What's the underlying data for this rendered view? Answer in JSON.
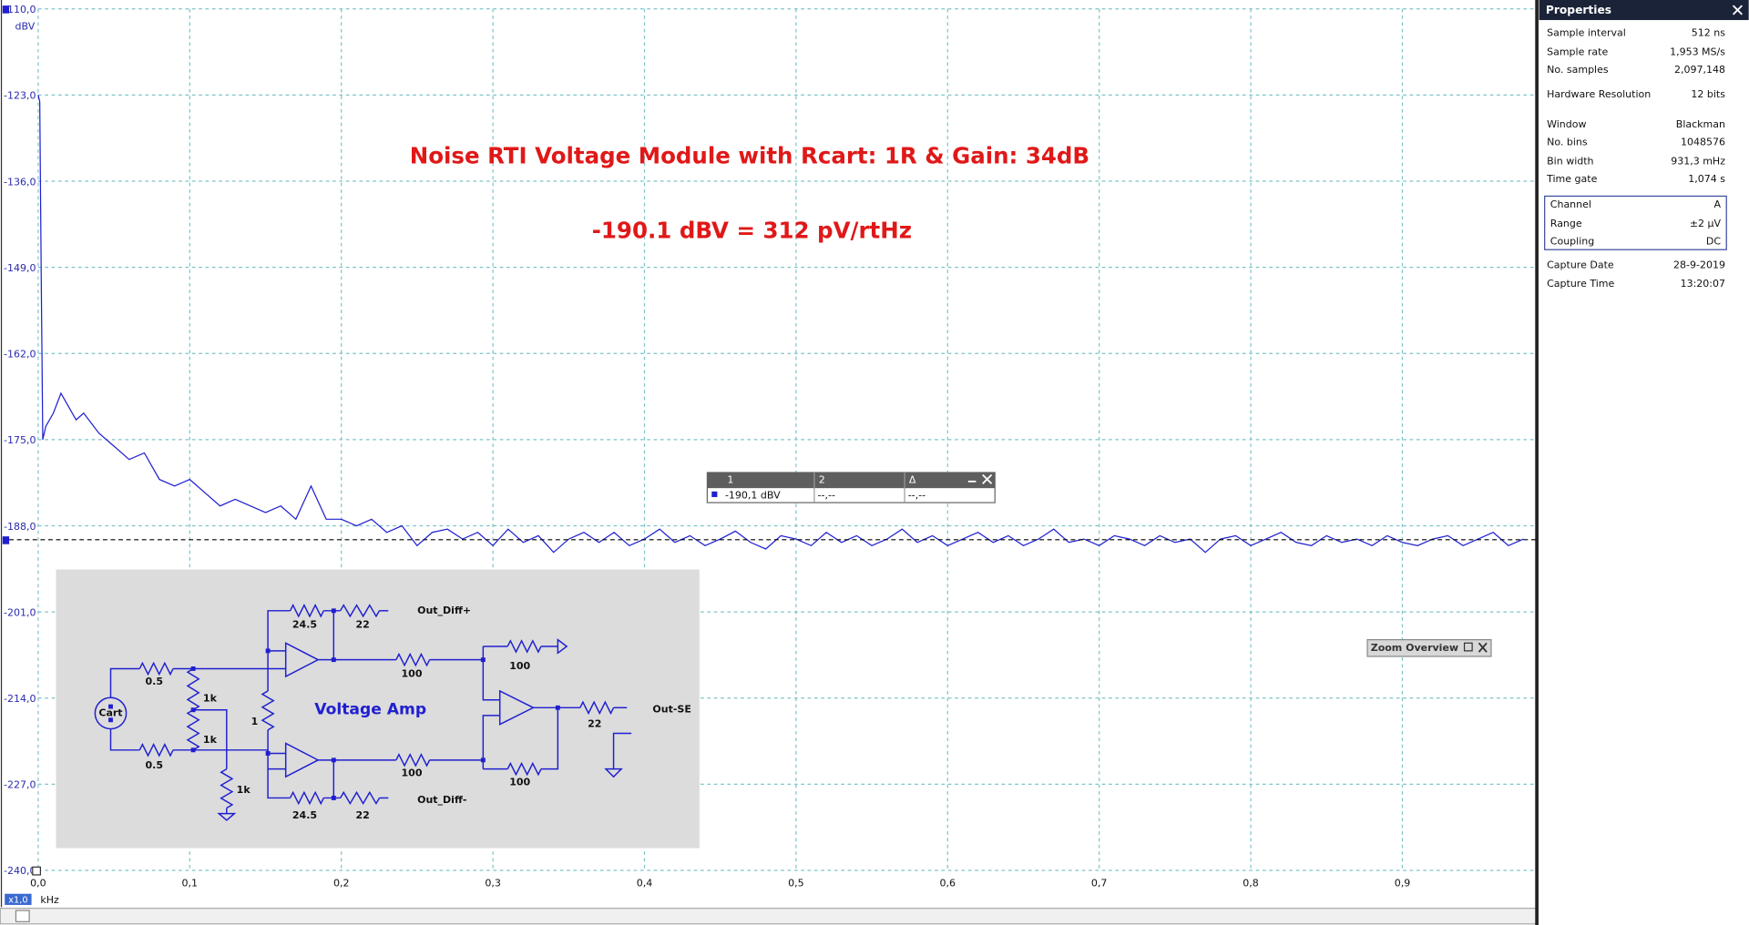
{
  "chart_data": {
    "type": "line",
    "x_label": "kHz",
    "y_label": "dBV",
    "zoom_factor": "x1,0",
    "annotations": [
      "Noise RTI Voltage Module with Rcart: 1R & Gain: 34dB",
      "-190.1 dBV = 312 pV/rtHz"
    ],
    "color": "#1f1fd0",
    "ruler": -190.1,
    "xlim": [
      0,
      0.988
    ],
    "ylim": [
      -240,
      -110
    ],
    "xticks": [
      {
        "value": 0,
        "label": "0,0"
      },
      {
        "value": 0.1,
        "label": "0,1"
      },
      {
        "value": 0.2,
        "label": "0,2"
      },
      {
        "value": 0.3,
        "label": "0,3"
      },
      {
        "value": 0.4,
        "label": "0,4"
      },
      {
        "value": 0.5,
        "label": "0,5"
      },
      {
        "value": 0.6,
        "label": "0,6"
      },
      {
        "value": 0.7,
        "label": "0,7"
      },
      {
        "value": 0.8,
        "label": "0,8"
      },
      {
        "value": 0.9,
        "label": "0,9"
      }
    ],
    "yticks": [
      {
        "value": -110,
        "label": "-110,0"
      },
      {
        "value": -123,
        "label": "-123,0"
      },
      {
        "value": -136,
        "label": "-136,0"
      },
      {
        "value": -149,
        "label": "-149,0"
      },
      {
        "value": -162,
        "label": "-162,0"
      },
      {
        "value": -175,
        "label": "-175,0"
      },
      {
        "value": -188,
        "label": "-188,0"
      },
      {
        "value": -201,
        "label": "-201,0"
      },
      {
        "value": -214,
        "label": "-214,0"
      },
      {
        "value": -227,
        "label": "-227,0"
      },
      {
        "value": -240,
        "label": "-240,0"
      }
    ],
    "grid": true,
    "x": [
      0,
      0.001,
      0.002,
      0.003,
      0.005,
      0.01,
      0.015,
      0.02,
      0.025,
      0.03,
      0.04,
      0.05,
      0.06,
      0.07,
      0.08,
      0.09,
      0.1,
      0.11,
      0.12,
      0.13,
      0.14,
      0.15,
      0.16,
      0.17,
      0.18,
      0.19,
      0.2,
      0.21,
      0.22,
      0.23,
      0.24,
      0.25,
      0.26,
      0.27,
      0.28,
      0.29,
      0.3,
      0.31,
      0.32,
      0.33,
      0.34,
      0.35,
      0.36,
      0.37,
      0.38,
      0.39,
      0.4,
      0.41,
      0.42,
      0.43,
      0.44,
      0.45,
      0.46,
      0.47,
      0.48,
      0.49,
      0.5,
      0.51,
      0.52,
      0.53,
      0.54,
      0.55,
      0.56,
      0.57,
      0.58,
      0.59,
      0.6,
      0.61,
      0.62,
      0.63,
      0.64,
      0.65,
      0.66,
      0.67,
      0.68,
      0.69,
      0.7,
      0.71,
      0.72,
      0.73,
      0.74,
      0.75,
      0.76,
      0.77,
      0.78,
      0.79,
      0.8,
      0.81,
      0.82,
      0.83,
      0.84,
      0.85,
      0.86,
      0.87,
      0.88,
      0.89,
      0.9,
      0.91,
      0.92,
      0.93,
      0.94,
      0.95,
      0.96,
      0.97,
      0.98
    ],
    "values": [
      -123,
      -124,
      -150,
      -175,
      -173,
      -171,
      -168,
      -170,
      -172,
      -171,
      -174,
      -176,
      -178,
      -177,
      -181,
      -182,
      -181,
      -183,
      -185,
      -184,
      -185,
      -186,
      -185,
      -187,
      -182,
      -187,
      -187,
      -188,
      -187,
      -189,
      -188,
      -191,
      -189,
      -188.5,
      -190,
      -189,
      -191,
      -188.5,
      -190.5,
      -189.5,
      -192,
      -190,
      -189,
      -190.5,
      -189,
      -191,
      -190,
      -188.5,
      -190.5,
      -189.5,
      -191,
      -190,
      -188.8,
      -190.5,
      -191.5,
      -189.5,
      -190,
      -191,
      -189,
      -190.5,
      -189.5,
      -191,
      -190,
      -188.5,
      -190.5,
      -189.5,
      -191,
      -190,
      -189,
      -190.5,
      -189.5,
      -191,
      -190,
      -188.5,
      -190.5,
      -190,
      -191,
      -189.5,
      -190,
      -191,
      -189.5,
      -190.5,
      -190,
      -192,
      -190,
      -189.5,
      -191,
      -190,
      -189,
      -190.5,
      -191,
      -189.5,
      -190.5,
      -190,
      -191,
      -189.5,
      -190.5,
      -191,
      -190,
      -189.5,
      -191,
      -190,
      -189,
      -191,
      -190
    ]
  },
  "cursor_table": {
    "headers": [
      "1",
      "2",
      "Δ"
    ],
    "values": [
      "-190,1 dBV",
      "--,--",
      "--,--"
    ]
  },
  "zoom_overview": "Zoom Overview",
  "properties": {
    "title": "Properties",
    "rows": [
      {
        "name": "Sample interval",
        "value": "512 ns"
      },
      {
        "name": "Sample rate",
        "value": "1,953 MS/s"
      },
      {
        "name": "No. samples",
        "value": "2,097,148"
      },
      {
        "name": "Hardware Resolution",
        "value": "12 bits"
      },
      {
        "name": "Window",
        "value": "Blackman"
      },
      {
        "name": "No. bins",
        "value": "1048576"
      },
      {
        "name": "Bin width",
        "value": "931,3 mHz"
      },
      {
        "name": "Time gate",
        "value": "1,074 s"
      }
    ],
    "channel": [
      {
        "name": "Channel",
        "value": "A"
      },
      {
        "name": "Range",
        "value": "±2 µV"
      },
      {
        "name": "Coupling",
        "value": "DC"
      }
    ],
    "capture": [
      {
        "name": "Capture Date",
        "value": "28-9-2019"
      },
      {
        "name": "Capture Time",
        "value": "13:20:07"
      }
    ]
  },
  "schematic": {
    "labels": [
      "24.5",
      "22",
      "Out_Diff+",
      "0.5",
      "1k",
      "1k",
      "Cart",
      "100",
      "100",
      "Voltage Amp",
      "1",
      "22",
      "Out-SE",
      "0.5",
      "100",
      "100",
      "1k",
      "24.5",
      "22",
      "Out_Diff-"
    ]
  }
}
